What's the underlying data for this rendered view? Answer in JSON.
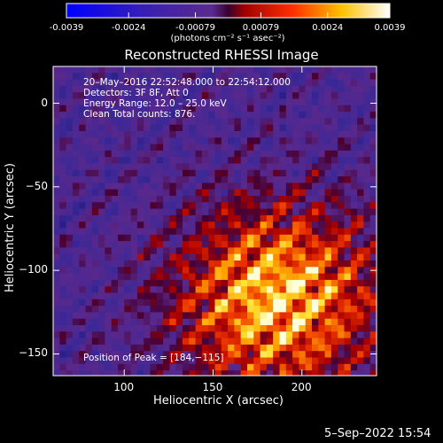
{
  "colorbar": {
    "ticks": [
      "-0.0039",
      "-0.0024",
      "-0.00079",
      "0.00079",
      "0.0024",
      "0.0039"
    ],
    "units": "(photons cm⁻² s⁻¹ asec⁻²)",
    "range": [
      -0.0039,
      0.0039
    ]
  },
  "chart_data": {
    "type": "heatmap",
    "title": "Reconstructed RHESSI Image",
    "xlabel": "Heliocentric X (arcsec)",
    "ylabel": "Heliocentric Y (arcsec)",
    "xlim": [
      60,
      242
    ],
    "ylim": [
      -163,
      22
    ],
    "xticks": [
      {
        "value": 100,
        "label": "100"
      },
      {
        "value": 150,
        "label": "150"
      },
      {
        "value": 200,
        "label": "200"
      }
    ],
    "yticks": [
      {
        "value": 0,
        "label": "0"
      },
      {
        "value": -50,
        "label": "−50"
      },
      {
        "value": -100,
        "label": "−100"
      },
      {
        "value": -150,
        "label": "−150"
      }
    ],
    "annotations": [
      "20–May–2016 22:52:48.000 to 22:54:12.000",
      "Detectors: 3F 8F, Att 0",
      "Energy Range: 12.0 – 25.0 keV",
      "Clean     Total counts: 876."
    ],
    "peak_label": "Position of Peak = [184,−115]",
    "peak": [
      184,
      -115
    ],
    "colormap": "rainbow-diverging (blue→purple→red→yellow→white)"
  },
  "footer": {
    "timestamp": "5–Sep–2022 15:54"
  }
}
